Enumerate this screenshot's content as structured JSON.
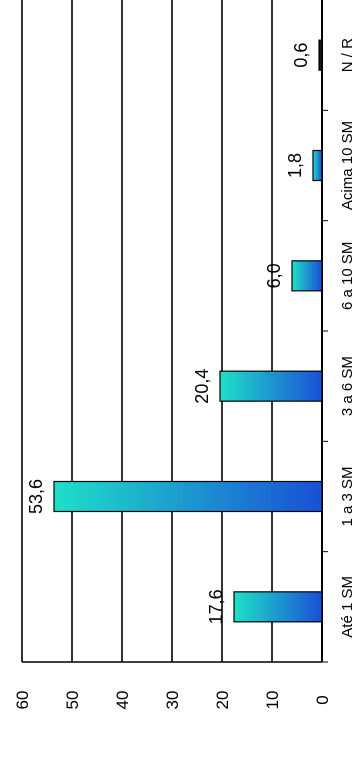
{
  "chart_data": {
    "type": "bar",
    "orientation": "rotated-90",
    "categories": [
      "Até 1 SM",
      "1 a 3 SM",
      "3 a 6 SM",
      "6 a 10 SM",
      "Acima 10 SM",
      "N / R"
    ],
    "values": [
      17.6,
      53.6,
      20.4,
      6.0,
      1.8,
      0.6
    ],
    "value_labels": [
      "17,6",
      "53,6",
      "20,4",
      "6,0",
      "1,8",
      "0,6"
    ],
    "ylim": [
      0,
      60
    ],
    "yticks": [
      0,
      10,
      20,
      30,
      40,
      50,
      60
    ],
    "title": "",
    "xlabel": "",
    "ylabel": "",
    "grid": true,
    "legend": "none",
    "colors": {
      "bar_gradient": [
        "#1ee0c8",
        "#1a4fd6"
      ],
      "bar_stroke": "#000000",
      "nr_bar": "#1a1a1a",
      "grid": "#000000",
      "background": "#ffffff"
    }
  }
}
